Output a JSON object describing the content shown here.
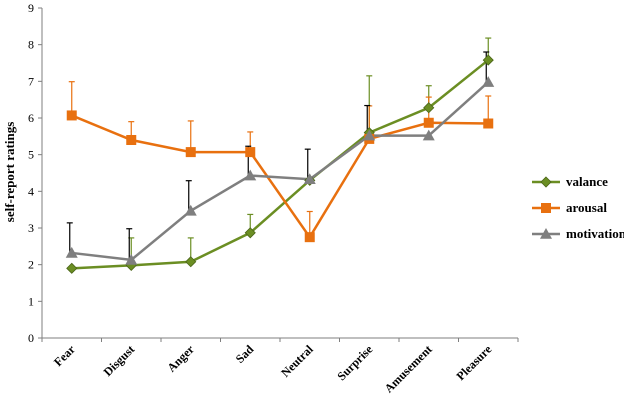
{
  "chart_data": {
    "type": "line",
    "title": "",
    "xlabel": "",
    "ylabel": "self-report ratings",
    "ylim": [
      0,
      9
    ],
    "yticks": [
      0,
      1,
      2,
      3,
      4,
      5,
      6,
      7,
      8,
      9
    ],
    "categories": [
      "Fear",
      "Disgust",
      "Anger",
      "Sad",
      "Neutral",
      "Surprise",
      "Amusement",
      "Pleasure"
    ],
    "grid": false,
    "legend_position": "right",
    "series": [
      {
        "name": "valance",
        "color": "#6b8e23",
        "marker": "diamond",
        "values": [
          1.9,
          1.98,
          2.08,
          2.87,
          4.3,
          5.6,
          6.28,
          7.58
        ],
        "errors": [
          0,
          0.75,
          0.65,
          0.5,
          0,
          1.55,
          0.6,
          0.6
        ]
      },
      {
        "name": "arousal",
        "color": "#e8700f",
        "marker": "square",
        "values": [
          6.07,
          5.4,
          5.07,
          5.07,
          2.75,
          5.43,
          5.87,
          5.85
        ],
        "errors": [
          0.92,
          0.5,
          0.85,
          0.55,
          0.7,
          0.9,
          0.7,
          0.75
        ]
      },
      {
        "name": "motivation",
        "color": "#7f7f7f",
        "marker": "triangle",
        "values": [
          2.32,
          2.13,
          3.47,
          4.43,
          4.33,
          5.52,
          5.52,
          6.98
        ],
        "errors": [
          0.82,
          0.85,
          0.82,
          0.8,
          0.82,
          0.82,
          0,
          0.82
        ]
      }
    ]
  }
}
